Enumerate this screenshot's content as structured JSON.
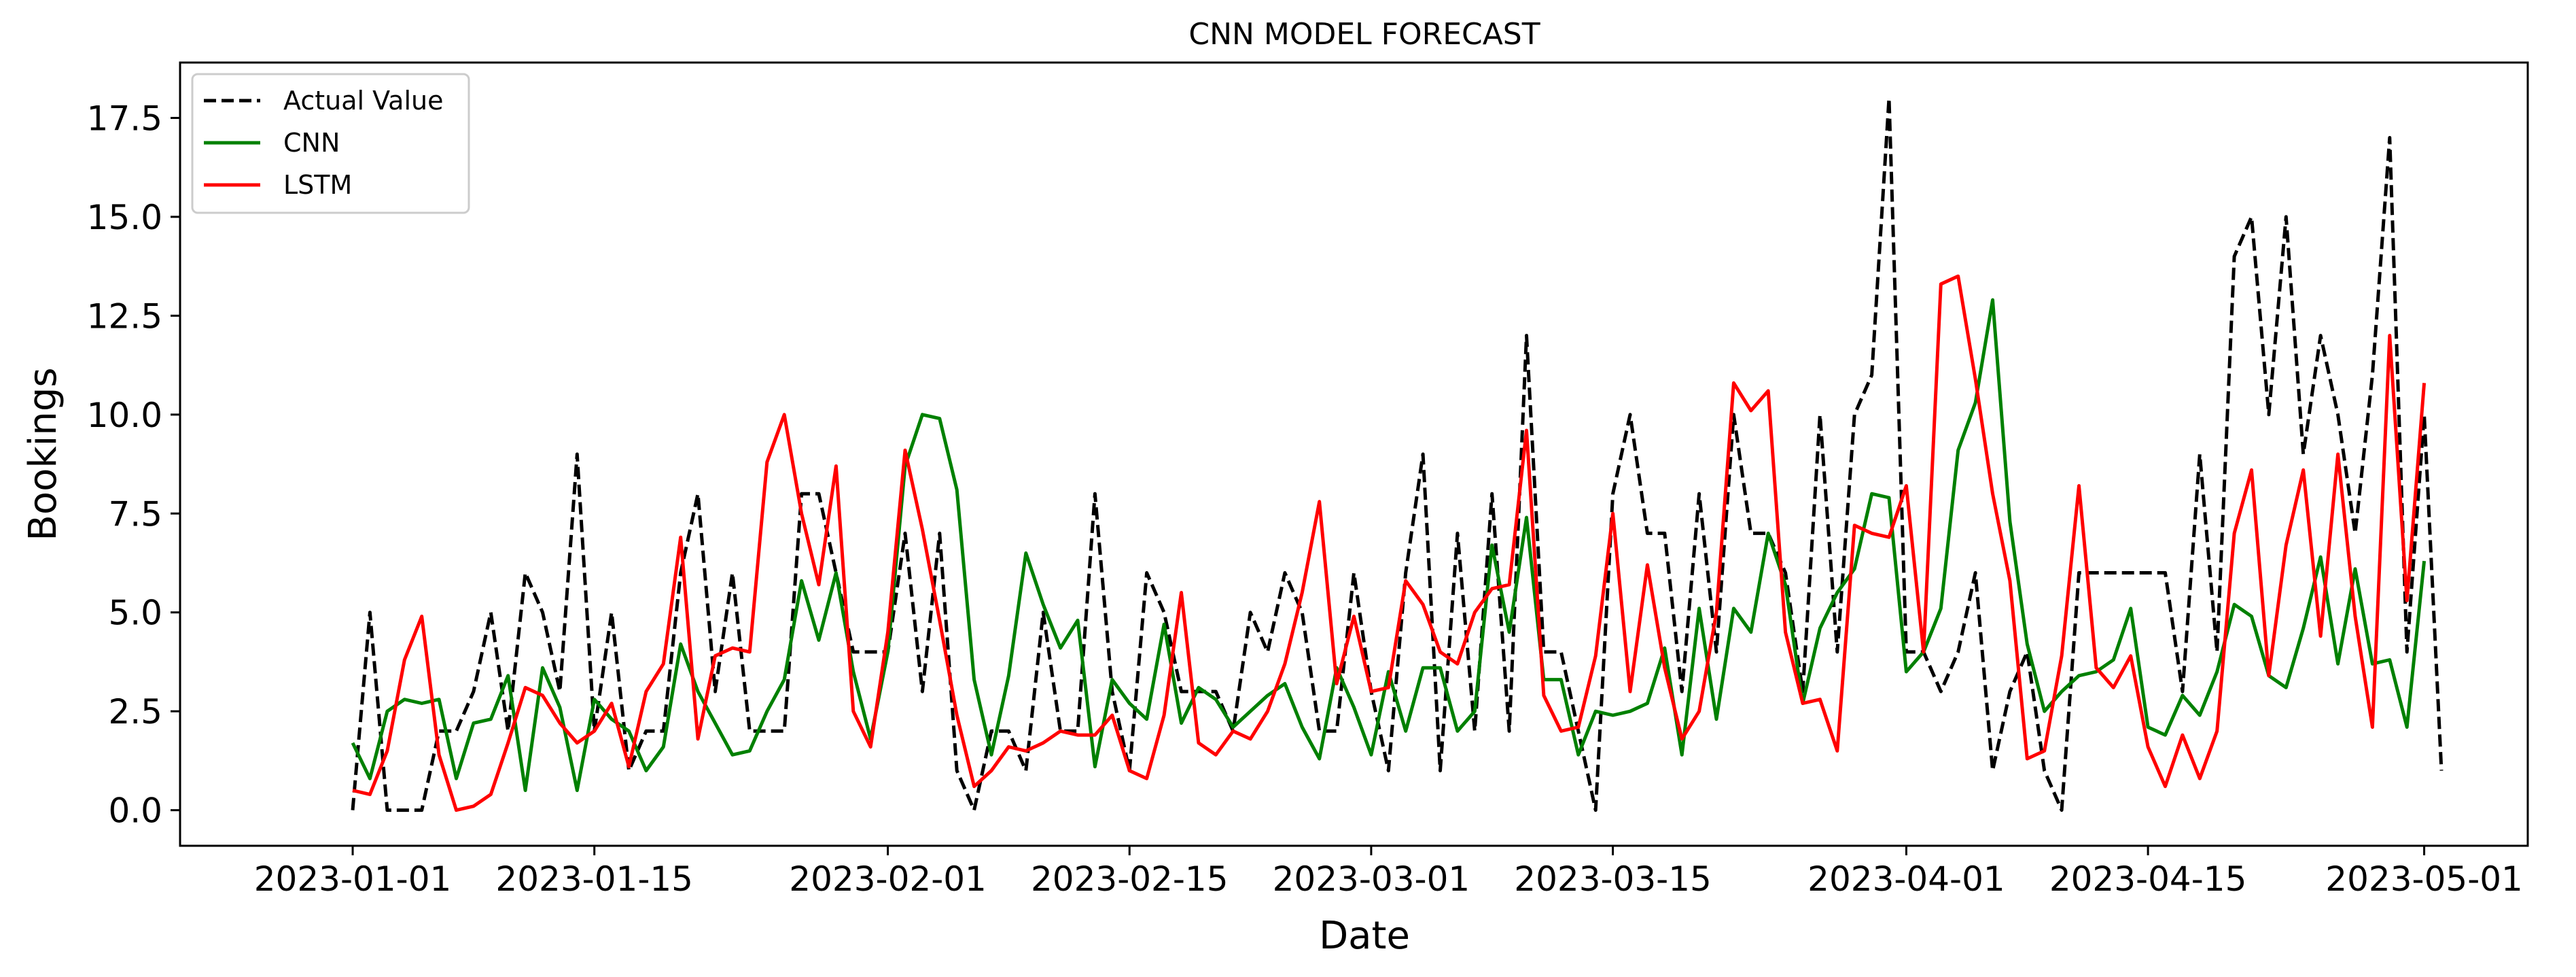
{
  "chart_data": {
    "type": "line",
    "title": "CNN MODEL FORECAST",
    "xlabel": "Date",
    "ylabel": "Bookings",
    "x_start": "2023-01-01",
    "x_end": "2023-05-01",
    "xlim": [
      "2022-12-22",
      "2023-05-07"
    ],
    "ylim": [
      -0.9,
      18.9
    ],
    "x_ticks": [
      "2023-01-01",
      "2023-01-15",
      "2023-02-01",
      "2023-02-15",
      "2023-03-01",
      "2023-03-15",
      "2023-04-01",
      "2023-04-15",
      "2023-05-01"
    ],
    "y_ticks": [
      0.0,
      2.5,
      5.0,
      7.5,
      10.0,
      12.5,
      15.0,
      17.5
    ],
    "y_tick_labels": [
      "0.0",
      "2.5",
      "5.0",
      "7.5",
      "10.0",
      "12.5",
      "15.0",
      "17.5"
    ],
    "grid": false,
    "legend_position": "upper-left",
    "series": [
      {
        "name": "Actual Value",
        "color": "#000000",
        "style": "dashed",
        "values": [
          0,
          5,
          0,
          0,
          0,
          2,
          2,
          3,
          5,
          2,
          6,
          5,
          3,
          9,
          2,
          5,
          1,
          2,
          2,
          6,
          8,
          3,
          6,
          2,
          2,
          2,
          8,
          8,
          6,
          4,
          4,
          4,
          7,
          3,
          7,
          1,
          0,
          2,
          2,
          1,
          5,
          2,
          2,
          8,
          3,
          1,
          6,
          5,
          3,
          3,
          3,
          2,
          5,
          4,
          6,
          5,
          2,
          2,
          6,
          3,
          1,
          6,
          9,
          1,
          7,
          2,
          8,
          2,
          12,
          4,
          4,
          2,
          0,
          8,
          10,
          7,
          7,
          3,
          8,
          4,
          10,
          7,
          7,
          6,
          3,
          10,
          4,
          10,
          11,
          18,
          4,
          4,
          3,
          4,
          6,
          1,
          3,
          4,
          1,
          0,
          6,
          6,
          6,
          6,
          6,
          6,
          3,
          9,
          4,
          14,
          15,
          10,
          15,
          9,
          12,
          10,
          7,
          11,
          17,
          4,
          10,
          1
        ]
      },
      {
        "name": "CNN",
        "color": "#008000",
        "style": "solid",
        "values": [
          1.7,
          0.8,
          2.5,
          2.8,
          2.7,
          2.8,
          0.8,
          2.2,
          2.3,
          3.4,
          0.5,
          3.6,
          2.6,
          0.5,
          2.8,
          2.3,
          2.0,
          1.0,
          1.6,
          4.2,
          3.0,
          2.2,
          1.4,
          1.5,
          2.5,
          3.3,
          5.8,
          4.3,
          6.0,
          3.5,
          1.8,
          4.0,
          8.7,
          10.0,
          9.9,
          8.1,
          3.3,
          1.4,
          3.4,
          6.5,
          5.2,
          4.1,
          4.8,
          1.1,
          3.3,
          2.7,
          2.3,
          4.7,
          2.2,
          3.1,
          2.8,
          2.1,
          2.5,
          2.9,
          3.2,
          2.1,
          1.3,
          3.6,
          2.6,
          1.4,
          3.5,
          2.0,
          3.6,
          3.6,
          2.0,
          2.5,
          6.7,
          4.5,
          7.4,
          3.3,
          3.3,
          1.4,
          2.5,
          2.4,
          2.5,
          2.7,
          4.1,
          1.4,
          5.1,
          2.3,
          5.1,
          4.5,
          7.0,
          5.7,
          2.7,
          4.6,
          5.5,
          6.1,
          8.0,
          7.9,
          3.5,
          4.0,
          5.1,
          9.1,
          10.3,
          12.9,
          7.3,
          4.2,
          2.5,
          3.0,
          3.4,
          3.5,
          3.8,
          5.1,
          2.1,
          1.9,
          2.9,
          2.4,
          3.5,
          5.2,
          4.9,
          3.4,
          3.1,
          4.6,
          6.4,
          3.7,
          6.1,
          3.7,
          3.8,
          2.1,
          6.3
        ]
      },
      {
        "name": "LSTM",
        "color": "#ff0000",
        "style": "solid",
        "values": [
          0.5,
          0.4,
          1.5,
          3.8,
          4.9,
          1.4,
          0.0,
          0.1,
          0.4,
          1.7,
          3.1,
          2.9,
          2.2,
          1.7,
          2.0,
          2.7,
          1.1,
          3.0,
          3.7,
          6.9,
          1.8,
          3.9,
          4.1,
          4.0,
          8.8,
          10.0,
          7.5,
          5.7,
          8.7,
          2.5,
          1.6,
          4.5,
          9.1,
          7.1,
          4.8,
          2.4,
          0.6,
          1.0,
          1.6,
          1.5,
          1.7,
          2.0,
          1.9,
          1.9,
          2.4,
          1.0,
          0.8,
          2.4,
          5.5,
          1.7,
          1.4,
          2.0,
          1.8,
          2.5,
          3.7,
          5.5,
          7.8,
          3.2,
          4.9,
          3.0,
          3.1,
          5.8,
          5.2,
          4.0,
          3.7,
          5.0,
          5.6,
          5.7,
          9.6,
          2.9,
          2.0,
          2.1,
          3.9,
          7.5,
          3.0,
          6.2,
          3.6,
          1.8,
          2.5,
          5.0,
          10.8,
          10.1,
          10.6,
          4.5,
          2.7,
          2.8,
          1.5,
          7.2,
          7.0,
          6.9,
          8.2,
          4.0,
          13.3,
          13.5,
          10.9,
          8.0,
          5.8,
          1.3,
          1.5,
          3.9,
          8.2,
          3.6,
          3.1,
          3.9,
          1.6,
          0.6,
          1.9,
          0.8,
          2.0,
          7.0,
          8.6,
          3.4,
          6.7,
          8.6,
          4.4,
          9.0,
          4.9,
          2.1,
          12.0,
          5.3,
          10.8
        ]
      }
    ]
  }
}
